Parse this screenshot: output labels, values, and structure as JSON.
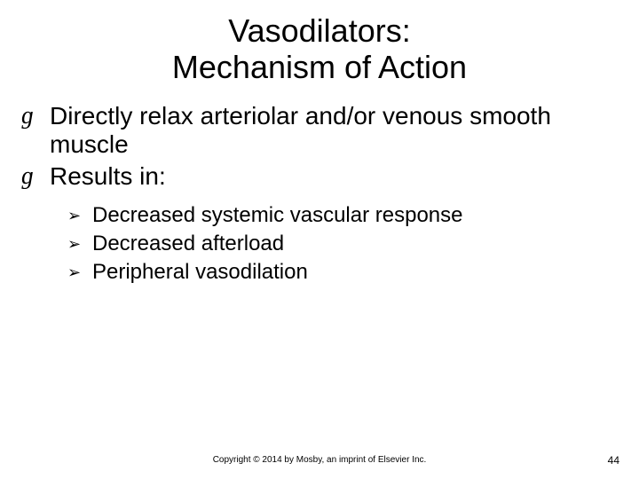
{
  "title_line1": "Vasodilators:",
  "title_line2": "Mechanism of Action",
  "bullets_lvl1": [
    "Directly relax arteriolar and/or venous smooth muscle",
    "Results in:"
  ],
  "bullets_lvl2": [
    "Decreased systemic vascular response",
    "Decreased afterload",
    "Peripheral vasodilation"
  ],
  "bullet1_glyph": "ɡ",
  "bullet2_glyph": "➢",
  "footer": "Copyright © 2014 by Mosby, an imprint of Elsevier Inc.",
  "page_number": "44",
  "colors": {
    "background": "#ffffff",
    "text": "#000000"
  },
  "fontsize": {
    "title": 36,
    "lvl1": 28,
    "lvl2": 24,
    "footer": 10,
    "pagenum": 12
  }
}
